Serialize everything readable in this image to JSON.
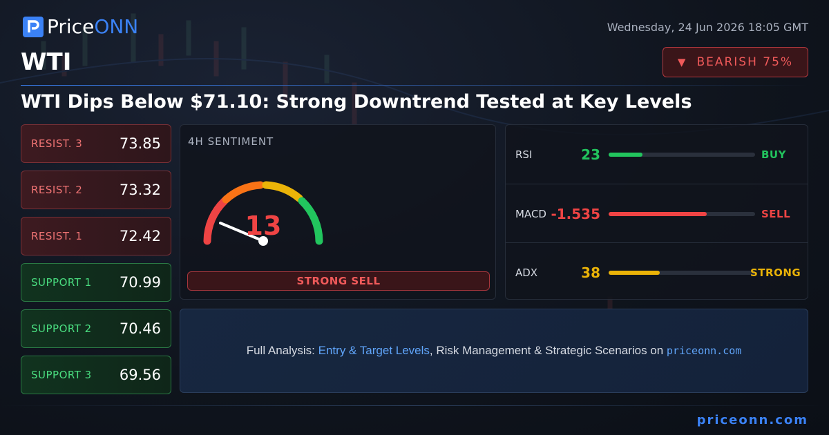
{
  "brand": {
    "name_a": "Price",
    "name_b": "ONN"
  },
  "datetime": "Wednesday, 24 Jun 2026 18:05 GMT",
  "symbol": "WTI",
  "badge": "BEARISH 75%",
  "headline": "WTI Dips Below $71.10: Strong Downtrend Tested at Key Levels",
  "levels": [
    {
      "label": "RESIST. 3",
      "value": 73.85
    },
    {
      "label": "RESIST. 2",
      "value": 73.32
    },
    {
      "label": "RESIST. 1",
      "value": 72.42
    },
    {
      "label": "SUPPORT 1",
      "value": 70.99
    },
    {
      "label": "SUPPORT 2",
      "value": 70.46
    },
    {
      "label": "SUPPORT 3",
      "value": 69.56
    }
  ],
  "sentiment": {
    "label": "4H SENTIMENT",
    "value": 13,
    "verdict": "STRONG SELL"
  },
  "indicators": [
    {
      "name": "RSI",
      "value": 23,
      "signal": "BUY"
    },
    {
      "name": "MACD",
      "value": -1.535,
      "signal": "SELL"
    },
    {
      "name": "ADX",
      "value": 38,
      "signal": "STRONG"
    }
  ],
  "footer": {
    "lead": "Full Analysis: ",
    "link": "Entry & Target Levels",
    "rest": ", Risk Management & Strategic Scenarios on ",
    "site": "priceonn.com"
  },
  "site": "priceonn.com"
}
